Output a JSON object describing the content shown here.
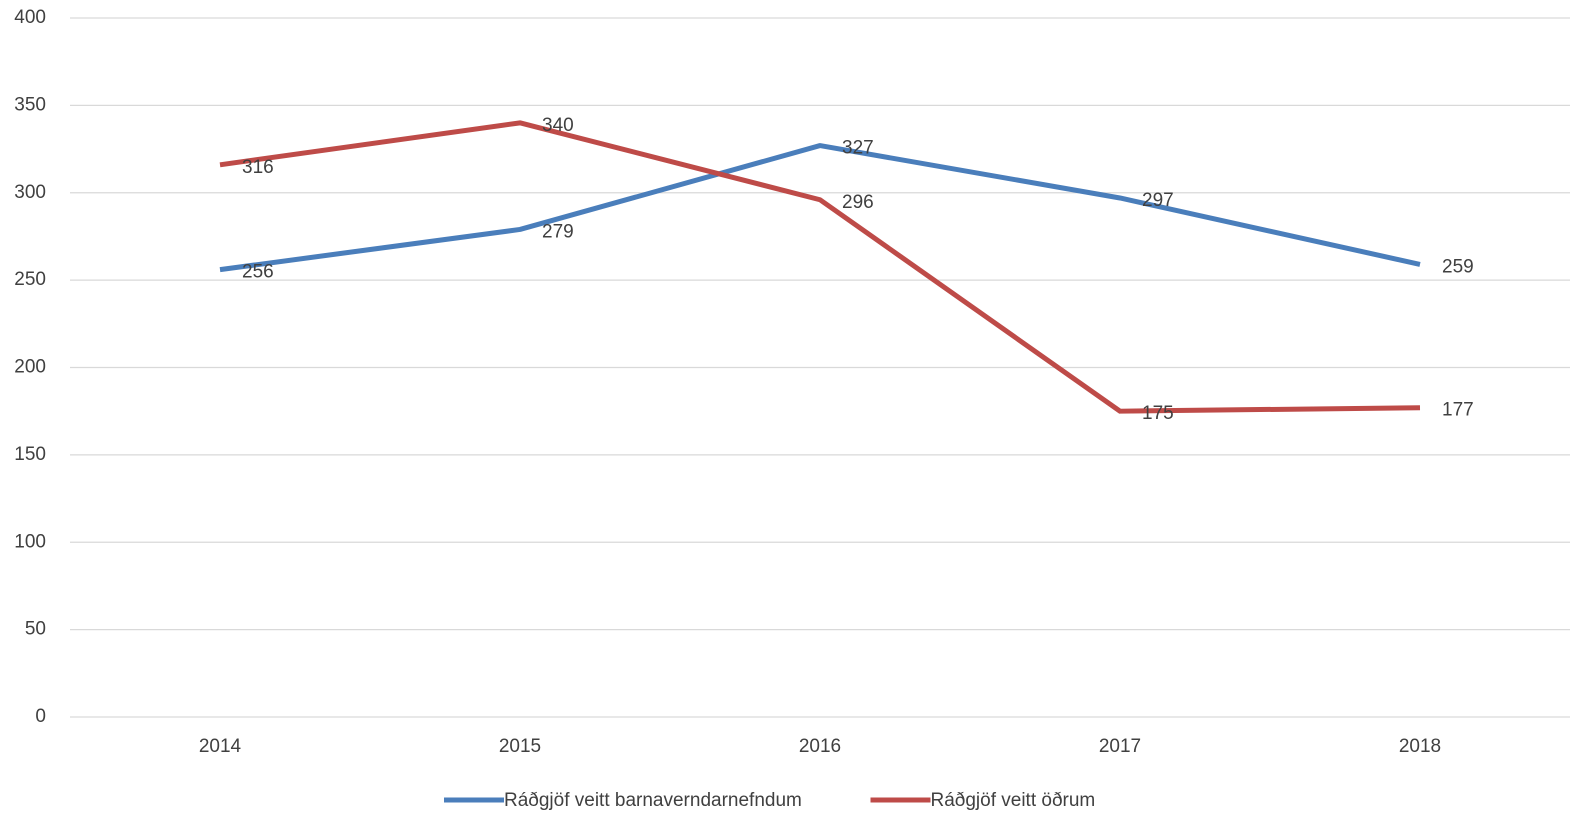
{
  "chart_data": {
    "type": "line",
    "categories": [
      "2014",
      "2015",
      "2016",
      "2017",
      "2018"
    ],
    "series": [
      {
        "name": "Ráðgjöf veitt barnaverndarnefndum",
        "color": "#4a7ebb",
        "values": [
          256,
          279,
          327,
          297,
          259
        ]
      },
      {
        "name": "Ráðgjöf veitt öðrum",
        "color": "#be4b48",
        "values": [
          316,
          340,
          296,
          175,
          177
        ]
      }
    ],
    "ylim": [
      0,
      400
    ],
    "yticks": [
      0,
      50,
      100,
      150,
      200,
      250,
      300,
      350,
      400
    ],
    "grid": true,
    "legend": "bottom"
  }
}
